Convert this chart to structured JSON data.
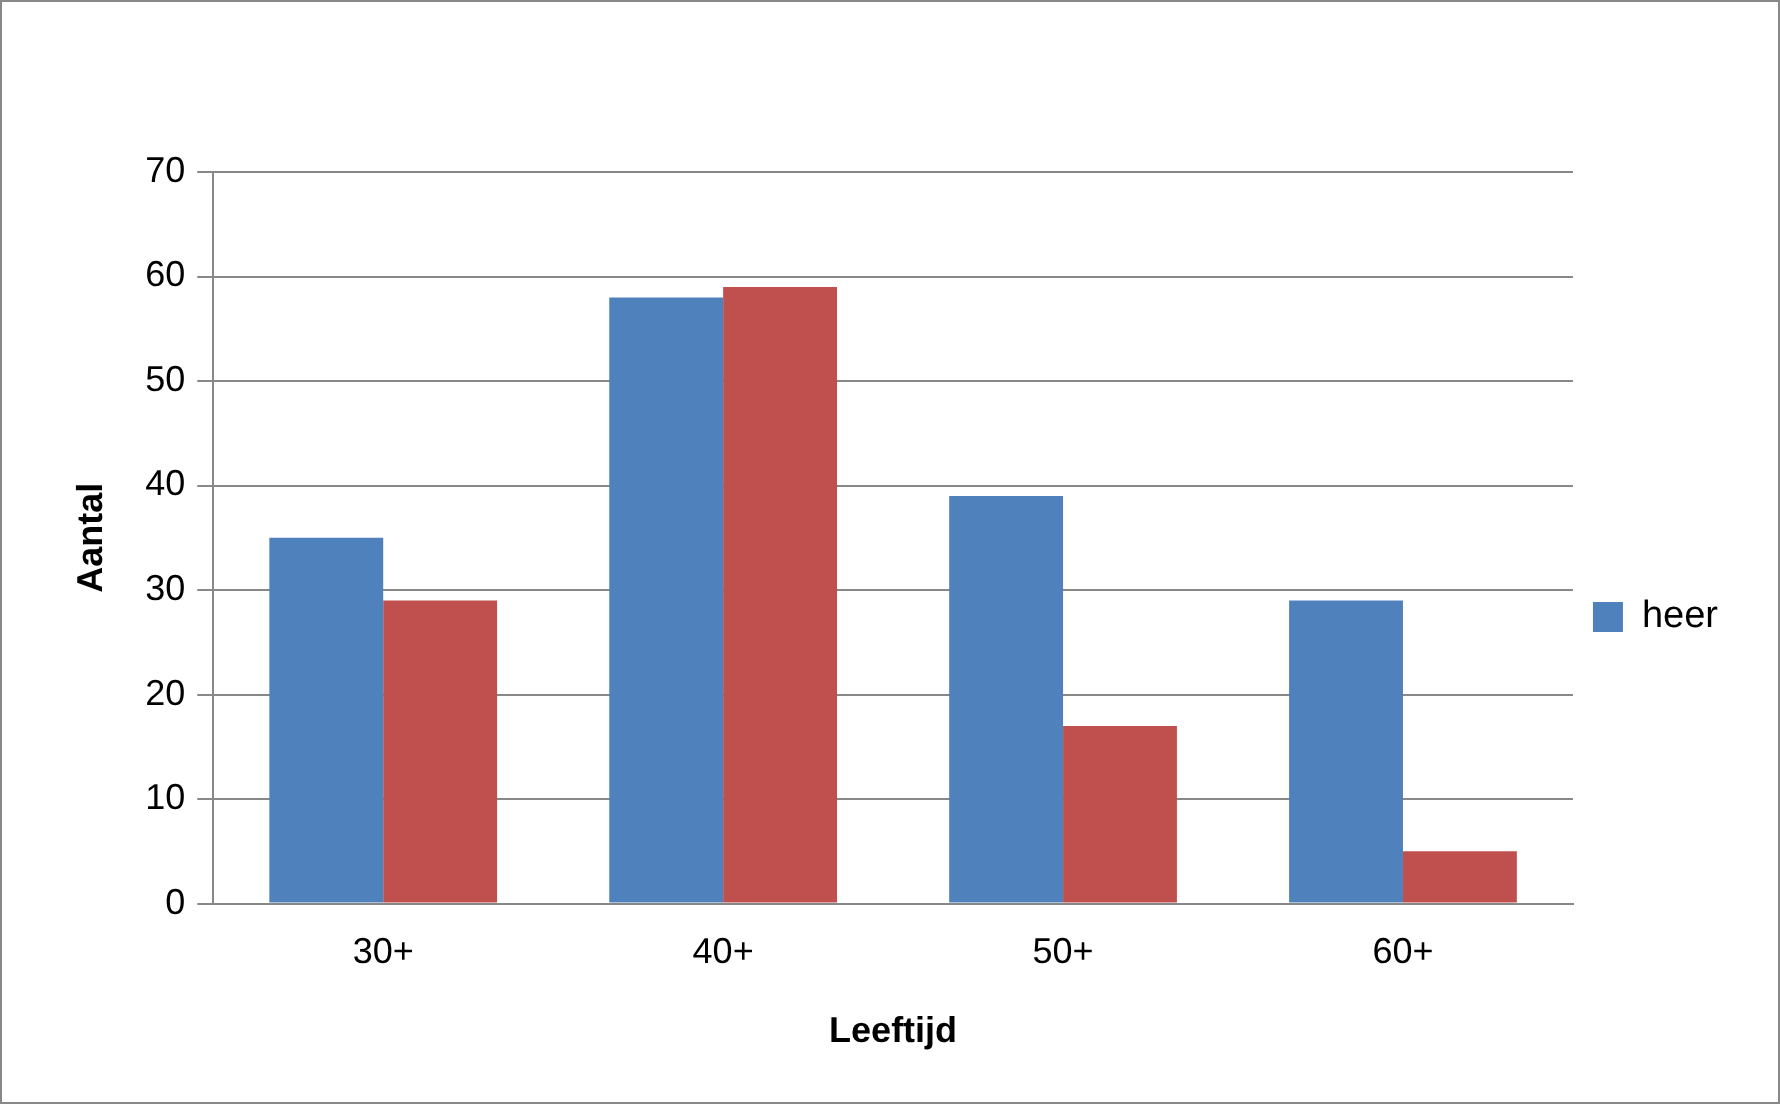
{
  "chart_data": {
    "type": "bar",
    "xlabel": "Leeftijd",
    "ylabel": "Aantal",
    "categories": [
      "30+",
      "40+",
      "50+",
      "60+"
    ],
    "series": [
      {
        "name": "heer",
        "color": "#4f81bd",
        "values": [
          35,
          58,
          39,
          29
        ]
      },
      {
        "color": "#c0504d",
        "values": [
          29,
          59,
          17,
          5
        ]
      }
    ],
    "ylim": [
      0,
      70
    ],
    "yticks": [
      0,
      10,
      20,
      30,
      40,
      50,
      60,
      70
    ],
    "grid": "y",
    "legend": "right"
  }
}
